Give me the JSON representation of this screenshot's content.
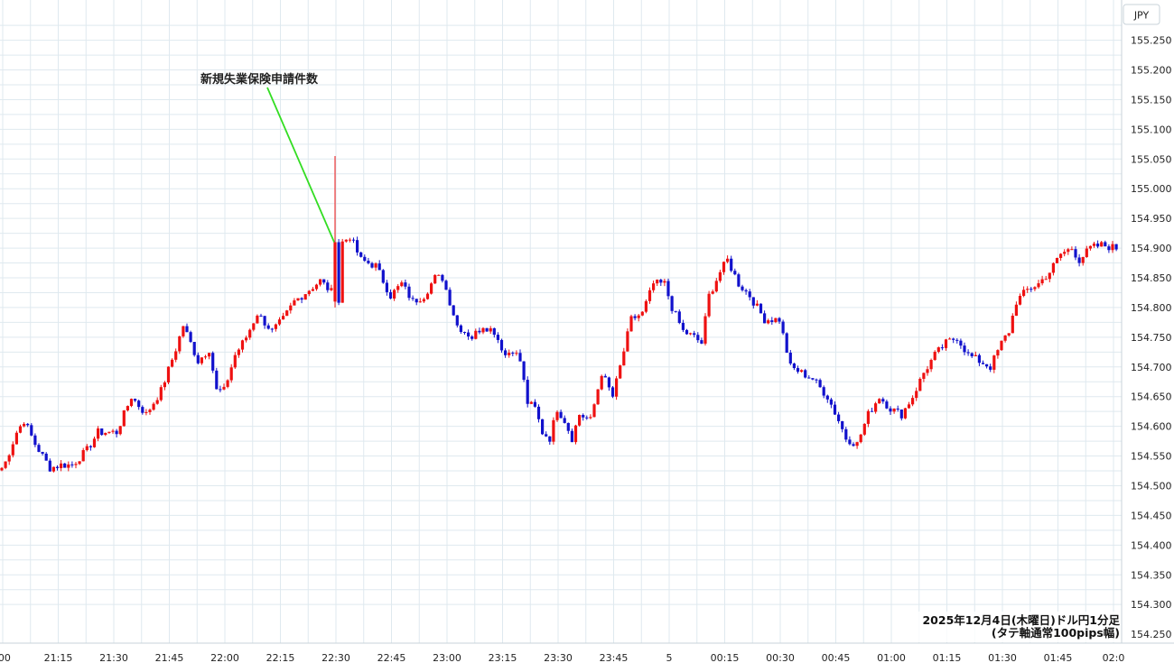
{
  "chart_data": {
    "type": "candlestick",
    "currency_label": "JPY",
    "info_line1": "2025年12月4日(木曜日)ドル円1分足",
    "info_line2": "(タテ軸通常100pips幅)",
    "annotation": {
      "text": "新規失業保険申請件数",
      "time": "22:30",
      "price": 154.91
    },
    "ylim": [
      154.225,
      155.275
    ],
    "y_ticks": [
      "155.250",
      "155.200",
      "155.150",
      "155.100",
      "155.050",
      "155.000",
      "154.950",
      "154.900",
      "154.850",
      "154.800",
      "154.750",
      "154.700",
      "154.650",
      "154.600",
      "154.550",
      "154.500",
      "154.450",
      "154.400",
      "154.350",
      "154.300",
      "154.250"
    ],
    "x_ticks": [
      ":00",
      "21:15",
      "21:30",
      "21:45",
      "22:00",
      "22:15",
      "22:30",
      "22:45",
      "23:00",
      "23:15",
      "23:30",
      "23:45",
      "5",
      "00:15",
      "00:30",
      "00:45",
      "01:00",
      "01:15",
      "01:30",
      "01:45",
      "02:0"
    ],
    "time_start": "20:59",
    "colors": {
      "up": "#ee1111",
      "down": "#1111cc",
      "annotation_line": "#33dd22",
      "grid": "#dfe9ef"
    },
    "path_keypoints": [
      [
        "20:59",
        154.53
      ],
      [
        "21:00",
        154.54
      ],
      [
        "21:03",
        154.59
      ],
      [
        "21:05",
        154.61
      ],
      [
        "21:08",
        154.57
      ],
      [
        "21:12",
        154.53
      ],
      [
        "21:15",
        154.535
      ],
      [
        "21:18",
        154.535
      ],
      [
        "21:22",
        154.56
      ],
      [
        "21:25",
        154.59
      ],
      [
        "21:30",
        154.59
      ],
      [
        "21:34",
        154.65
      ],
      [
        "21:38",
        154.62
      ],
      [
        "21:42",
        154.66
      ],
      [
        "21:46",
        154.73
      ],
      [
        "21:48",
        154.77
      ],
      [
        "21:52",
        154.71
      ],
      [
        "21:55",
        154.73
      ],
      [
        "21:57",
        154.66
      ],
      [
        "21:59",
        154.66
      ],
      [
        "22:02",
        154.72
      ],
      [
        "22:05",
        154.75
      ],
      [
        "22:08",
        154.79
      ],
      [
        "22:12",
        154.76
      ],
      [
        "22:15",
        154.78
      ],
      [
        "22:18",
        154.81
      ],
      [
        "22:22",
        154.83
      ],
      [
        "22:25",
        154.845
      ],
      [
        "22:29",
        154.82
      ],
      [
        "22:30",
        154.81
      ],
      [
        "22:31",
        154.91
      ],
      [
        "22:33",
        154.92
      ],
      [
        "22:36",
        154.88
      ],
      [
        "22:40",
        154.87
      ],
      [
        "22:44",
        154.82
      ],
      [
        "22:47",
        154.84
      ],
      [
        "22:50",
        154.81
      ],
      [
        "22:53",
        154.82
      ],
      [
        "22:56",
        154.85
      ],
      [
        "22:58",
        154.85
      ],
      [
        "23:00",
        154.81
      ],
      [
        "23:02",
        154.77
      ],
      [
        "23:06",
        154.75
      ],
      [
        "23:09",
        154.77
      ],
      [
        "23:12",
        154.76
      ],
      [
        "23:15",
        154.72
      ],
      [
        "23:17",
        154.73
      ],
      [
        "23:19",
        154.71
      ],
      [
        "23:21",
        154.64
      ],
      [
        "23:23",
        154.63
      ],
      [
        "23:25",
        154.59
      ],
      [
        "23:27",
        154.58
      ],
      [
        "23:29",
        154.63
      ],
      [
        "23:31",
        154.61
      ],
      [
        "23:33",
        154.58
      ],
      [
        "23:35",
        154.62
      ],
      [
        "23:38",
        154.61
      ],
      [
        "23:41",
        154.69
      ],
      [
        "23:44",
        154.65
      ],
      [
        "23:46",
        154.7
      ],
      [
        "23:49",
        154.78
      ],
      [
        "23:52",
        154.79
      ],
      [
        "23:55",
        154.84
      ],
      [
        "23:58",
        154.84
      ],
      [
        "00:00",
        154.8
      ],
      [
        "00:03",
        154.76
      ],
      [
        "00:06",
        154.75
      ],
      [
        "00:08",
        154.74
      ],
      [
        "00:10",
        154.82
      ],
      [
        "00:13",
        154.86
      ],
      [
        "00:15",
        154.88
      ],
      [
        "00:18",
        154.84
      ],
      [
        "00:21",
        154.82
      ],
      [
        "00:25",
        154.78
      ],
      [
        "00:29",
        154.78
      ],
      [
        "00:32",
        154.7
      ],
      [
        "00:35",
        154.69
      ],
      [
        "00:38",
        154.68
      ],
      [
        "00:42",
        154.65
      ],
      [
        "00:45",
        154.61
      ],
      [
        "00:47",
        154.58
      ],
      [
        "00:50",
        154.57
      ],
      [
        "00:53",
        154.62
      ],
      [
        "00:56",
        154.65
      ],
      [
        "00:59",
        154.63
      ],
      [
        "01:02",
        154.62
      ],
      [
        "01:05",
        154.65
      ],
      [
        "01:08",
        154.69
      ],
      [
        "01:11",
        154.72
      ],
      [
        "01:14",
        154.74
      ],
      [
        "01:17",
        154.75
      ],
      [
        "01:20",
        154.72
      ],
      [
        "01:23",
        154.71
      ],
      [
        "01:26",
        154.7
      ],
      [
        "01:29",
        154.74
      ],
      [
        "01:31",
        154.76
      ],
      [
        "01:33",
        154.81
      ],
      [
        "01:36",
        154.83
      ],
      [
        "01:39",
        154.84
      ],
      [
        "01:42",
        154.86
      ],
      [
        "01:45",
        154.89
      ],
      [
        "01:48",
        154.9
      ],
      [
        "01:50",
        154.88
      ],
      [
        "01:53",
        154.9
      ],
      [
        "01:56",
        154.905
      ],
      [
        "02:00",
        154.9
      ]
    ],
    "spikes": [
      {
        "time": "22:29",
        "high": 155.055,
        "low": 154.8,
        "open": 154.81,
        "close": 154.91
      }
    ]
  }
}
